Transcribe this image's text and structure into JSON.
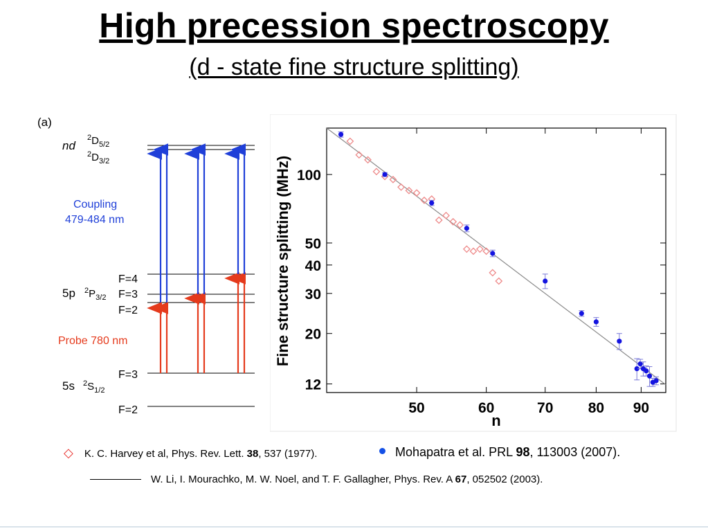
{
  "slide": {
    "title": "High precession spectroscopy",
    "subtitle": "(d - state fine structure splitting)"
  },
  "level_diagram": {
    "panel_label": "(a)",
    "nd": "nd",
    "D52": "2D5/2",
    "D32": "2D3/2",
    "coupling_line1": "Coupling",
    "coupling_line2": "479-484 nm",
    "coupling_color": "#1f3fd8",
    "probe_label": "Probe 780 nm",
    "probe_color": "#e53a1c",
    "p_state_prefix": "5p",
    "p_state": "2P3/2",
    "s_state_prefix": "5s",
    "s_state": "2S1/2",
    "p_F4": "F=4",
    "p_F3": "F=3",
    "p_F2": "F=2",
    "s_F3": "F=3",
    "s_F2": "F=2"
  },
  "chart_data": {
    "type": "scatter",
    "xlabel": "n",
    "ylabel": "Fine structure splitting (MHz)",
    "x_scale": "log",
    "y_scale": "log",
    "xlim": [
      39.5,
      96
    ],
    "ylim": [
      11,
      160
    ],
    "x_ticks": [
      50,
      60,
      70,
      80,
      90
    ],
    "y_ticks": [
      12,
      20,
      30,
      40,
      50,
      100
    ],
    "series": [
      {
        "marker": "open-diamond",
        "color": "#ee8a8a",
        "points": [
          [
            42,
            140
          ],
          [
            43,
            122
          ],
          [
            44,
            116
          ],
          [
            45,
            103
          ],
          [
            46,
            98
          ],
          [
            47,
            95
          ],
          [
            48,
            88
          ],
          [
            49,
            85
          ],
          [
            50,
            83
          ],
          [
            51,
            77
          ],
          [
            52,
            78
          ],
          [
            53,
            63
          ],
          [
            54,
            66
          ],
          [
            55,
            62
          ],
          [
            56,
            60
          ],
          [
            57,
            47
          ],
          [
            58,
            46
          ],
          [
            59,
            47
          ],
          [
            60,
            46
          ],
          [
            61,
            37
          ],
          [
            62,
            34
          ]
        ]
      },
      {
        "marker": "filled-circle",
        "color": "#1414e0",
        "points": [
          [
            41,
            150,
            4
          ],
          [
            46,
            100,
            2
          ],
          [
            52,
            75,
            2
          ],
          [
            57,
            58,
            2
          ],
          [
            61,
            45,
            1.5
          ],
          [
            70,
            34,
            2.5
          ],
          [
            77,
            24.5,
            0.7
          ],
          [
            80,
            22.5,
            1
          ],
          [
            85,
            18.5,
            1.5
          ],
          [
            89,
            14,
            1.5
          ],
          [
            89.8,
            14.7,
            0.7
          ],
          [
            90.5,
            14,
            1
          ],
          [
            91.2,
            13.7,
            0.7
          ],
          [
            92,
            13,
            1.3
          ],
          [
            92.8,
            12.2,
            0.5
          ],
          [
            93.6,
            12.4,
            0.5
          ]
        ]
      },
      {
        "marker": "line",
        "color": "#8a8a8a",
        "points": [
          [
            39.5,
            160
          ],
          [
            96,
            11.9
          ]
        ]
      }
    ]
  },
  "references": {
    "ref1_text": "K. C. Harvey et al, Phys. Rev. Lett. ",
    "ref1_vol": "38",
    "ref1_rest": ", 537 (1977).",
    "ref2_text": "Mohapatra et al. PRL ",
    "ref2_vol": "98",
    "ref2_rest": ", 113003 (2007).",
    "ref3_text": "W. Li, I. Mourachko, M. W. Noel, and T. F. Gallagher, Phys. Rev. A ",
    "ref3_vol": "67",
    "ref3_rest": ", 052502 (2003)."
  }
}
